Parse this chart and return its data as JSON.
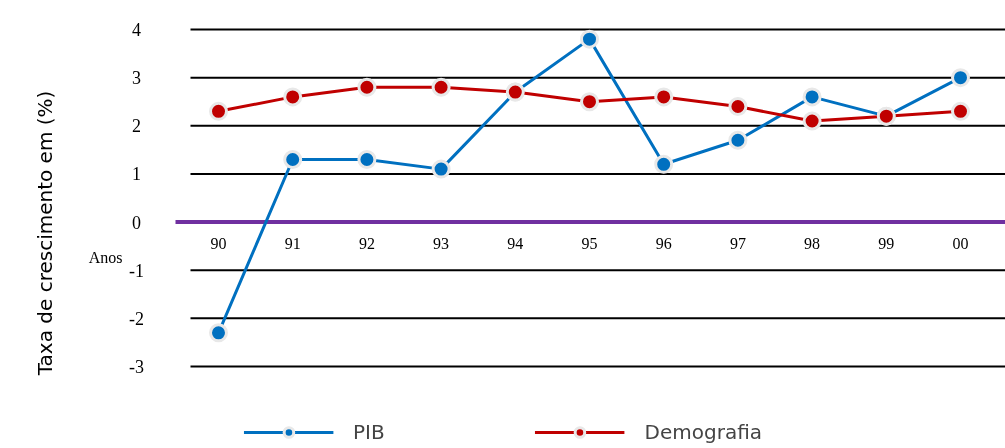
{
  "chart_data": {
    "type": "line",
    "ylabel": "Taxa de crescimento em (%)",
    "xlabel": "Anos",
    "categories": [
      "90",
      "91",
      "92",
      "93",
      "94",
      "95",
      "96",
      "97",
      "98",
      "99",
      "00"
    ],
    "series": [
      {
        "name": "PIB",
        "color": "#0070c0",
        "values": [
          -2.3,
          1.3,
          1.3,
          1.1,
          2.7,
          3.8,
          1.2,
          1.7,
          2.6,
          2.2,
          3.0
        ]
      },
      {
        "name": "Demografia",
        "color": "#c00000",
        "values": [
          2.3,
          2.6,
          2.8,
          2.8,
          2.7,
          2.5,
          2.6,
          2.4,
          2.1,
          2.2,
          2.3
        ]
      }
    ],
    "ylim": [
      -3,
      4
    ],
    "yticks": [
      -3,
      -2,
      -1,
      0,
      1,
      2,
      3,
      4
    ],
    "grid": "y",
    "legend": "bottom",
    "marker": "circle",
    "line_style": "solid"
  }
}
